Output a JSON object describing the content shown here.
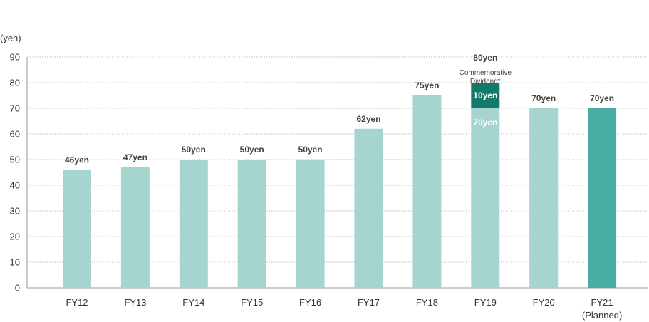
{
  "chart_data": {
    "type": "bar",
    "unit_label": "(yen)",
    "ylim": [
      0,
      90
    ],
    "yticks": [
      0,
      10,
      20,
      30,
      40,
      50,
      60,
      70,
      80,
      90
    ],
    "grid": true,
    "categories": [
      "FY12",
      "FY13",
      "FY14",
      "FY15",
      "FY16",
      "FY17",
      "FY18",
      "FY19",
      "FY20",
      "FY21"
    ],
    "category_sublabels": [
      "",
      "",
      "",
      "",
      "",
      "",
      "",
      "",
      "",
      "(Planned)"
    ],
    "series": [
      {
        "values": [
          46,
          47,
          50,
          50,
          50,
          62,
          75,
          70,
          70,
          70
        ]
      },
      {
        "values": [
          0,
          0,
          0,
          0,
          0,
          0,
          0,
          10,
          0,
          0
        ]
      }
    ],
    "data_labels": [
      "46yen",
      "47yen",
      "50yen",
      "50yen",
      "50yen",
      "62yen",
      "75yen",
      "80yen",
      "70yen",
      "70yen"
    ],
    "fy19_annotation": {
      "lines": [
        "Commemorative",
        "Dividend*"
      ],
      "commemorative_label": "10yen",
      "ordinary_label": "70yen"
    },
    "colors": {
      "ordinary": "#a6d5d0",
      "commemorative": "#137a6b",
      "planned": "#48ada3",
      "grid": "#bdbdbd",
      "axis": "#999999"
    }
  }
}
